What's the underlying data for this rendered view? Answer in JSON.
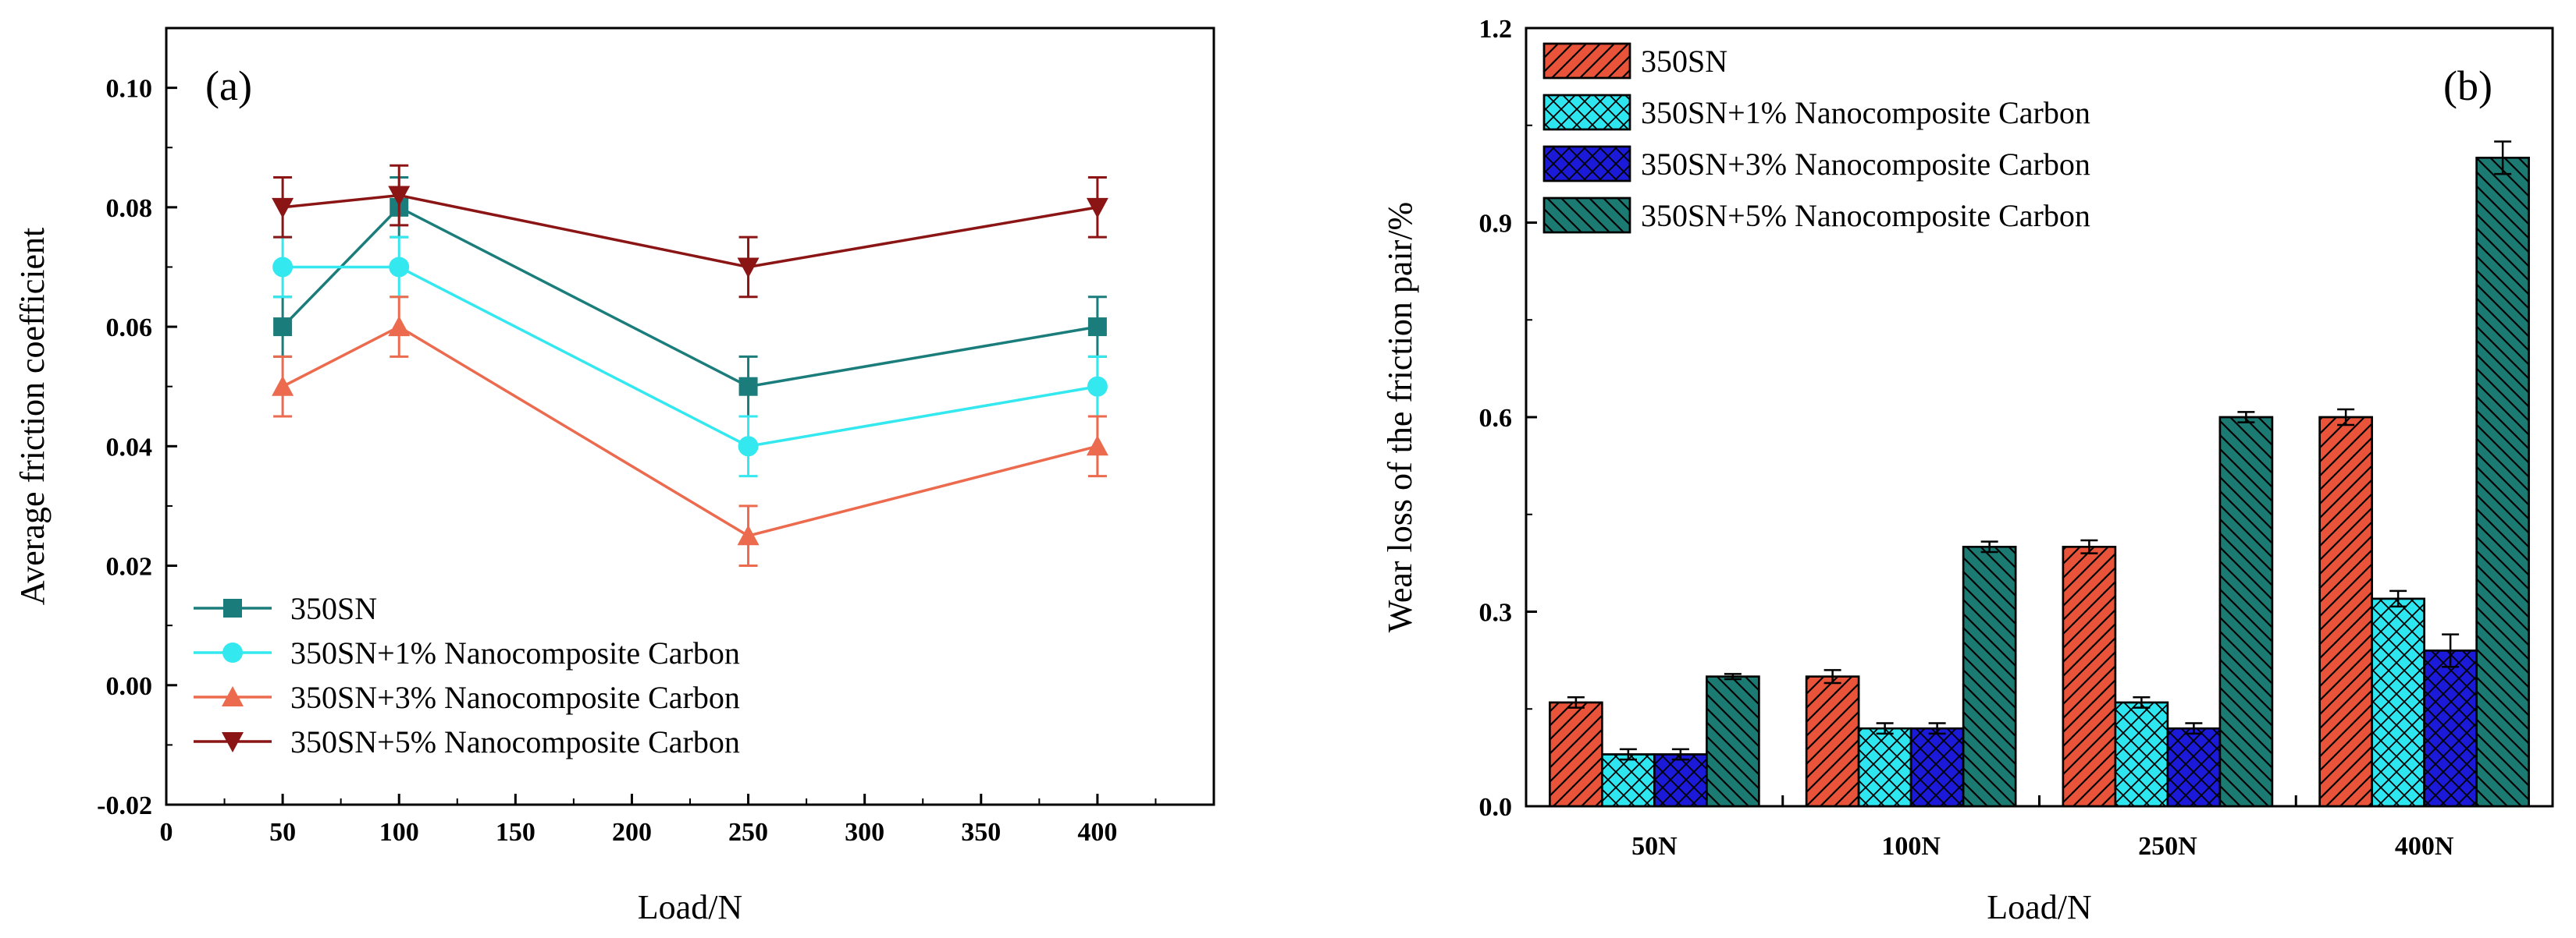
{
  "chart_data": [
    {
      "panel": "(a)",
      "type": "line",
      "xlabel": "Load/N",
      "ylabel": "Average friction coefficient",
      "xlim": [
        0,
        450
      ],
      "ylim": [
        -0.02,
        0.11
      ],
      "xticks": [
        0,
        50,
        100,
        150,
        200,
        250,
        300,
        350,
        400
      ],
      "xtick_labels": [
        "0",
        "50",
        "100",
        "150",
        "200",
        "250",
        "300",
        "350",
        "400"
      ],
      "yticks": [
        -0.02,
        0.0,
        0.02,
        0.04,
        0.06,
        0.08,
        0.1
      ],
      "ytick_labels": [
        "-0.02",
        "0.00",
        "0.02",
        "0.04",
        "0.06",
        "0.08",
        "0.10"
      ],
      "x": [
        50,
        100,
        250,
        400
      ],
      "legend_position": "bottom-left",
      "series": [
        {
          "name": "350SN",
          "color": "#1b7d7b",
          "marker": "square",
          "values": [
            0.06,
            0.08,
            0.05,
            0.06
          ],
          "errors": [
            0.005,
            0.005,
            0.005,
            0.005
          ]
        },
        {
          "name": "350SN+1% Nanocomposite Carbon",
          "color": "#33e8ef",
          "marker": "circle",
          "values": [
            0.07,
            0.07,
            0.04,
            0.05
          ],
          "errors": [
            0.005,
            0.005,
            0.005,
            0.005
          ]
        },
        {
          "name": "350SN+3% Nanocomposite Carbon",
          "color": "#ec6a4e",
          "marker": "triangle-up",
          "values": [
            0.05,
            0.06,
            0.025,
            0.04
          ],
          "errors": [
            0.005,
            0.005,
            0.005,
            0.005
          ]
        },
        {
          "name": "350SN+5% Nanocomposite Carbon",
          "color": "#8b1515",
          "marker": "triangle-down",
          "values": [
            0.08,
            0.082,
            0.07,
            0.08
          ],
          "errors": [
            0.005,
            0.005,
            0.005,
            0.005
          ]
        }
      ]
    },
    {
      "panel": "(b)",
      "type": "bar",
      "xlabel": "Load/N",
      "ylabel": "Wear loss of the friction pair/%",
      "ylim": [
        0,
        1.2
      ],
      "yticks": [
        0.0,
        0.3,
        0.6,
        0.9,
        1.2
      ],
      "ytick_labels": [
        "0.0",
        "0.3",
        "0.6",
        "0.9",
        "1.2"
      ],
      "categories": [
        "50N",
        "100N",
        "250N",
        "400N"
      ],
      "legend_position": "top-left",
      "series": [
        {
          "name": "350SN",
          "color": "#e8533a",
          "pattern": "hatch-right",
          "values": [
            0.16,
            0.2,
            0.4,
            0.6
          ],
          "errors": [
            0.008,
            0.01,
            0.01,
            0.012
          ]
        },
        {
          "name": "350SN+1% Nanocomposite Carbon",
          "color": "#2de6f0",
          "pattern": "crosshatch",
          "values": [
            0.08,
            0.12,
            0.16,
            0.32
          ],
          "errors": [
            0.008,
            0.008,
            0.008,
            0.012
          ]
        },
        {
          "name": "350SN+3% Nanocomposite Carbon",
          "color": "#1a1ad8",
          "pattern": "crosshatch",
          "values": [
            0.08,
            0.12,
            0.12,
            0.24
          ],
          "errors": [
            0.008,
            0.008,
            0.008,
            0.025
          ]
        },
        {
          "name": "350SN+5% Nanocomposite Carbon",
          "color": "#1b7a72",
          "pattern": "hatch-left",
          "values": [
            0.2,
            0.4,
            0.6,
            1.0
          ],
          "errors": [
            0.004,
            0.008,
            0.008,
            0.025
          ]
        }
      ]
    }
  ]
}
